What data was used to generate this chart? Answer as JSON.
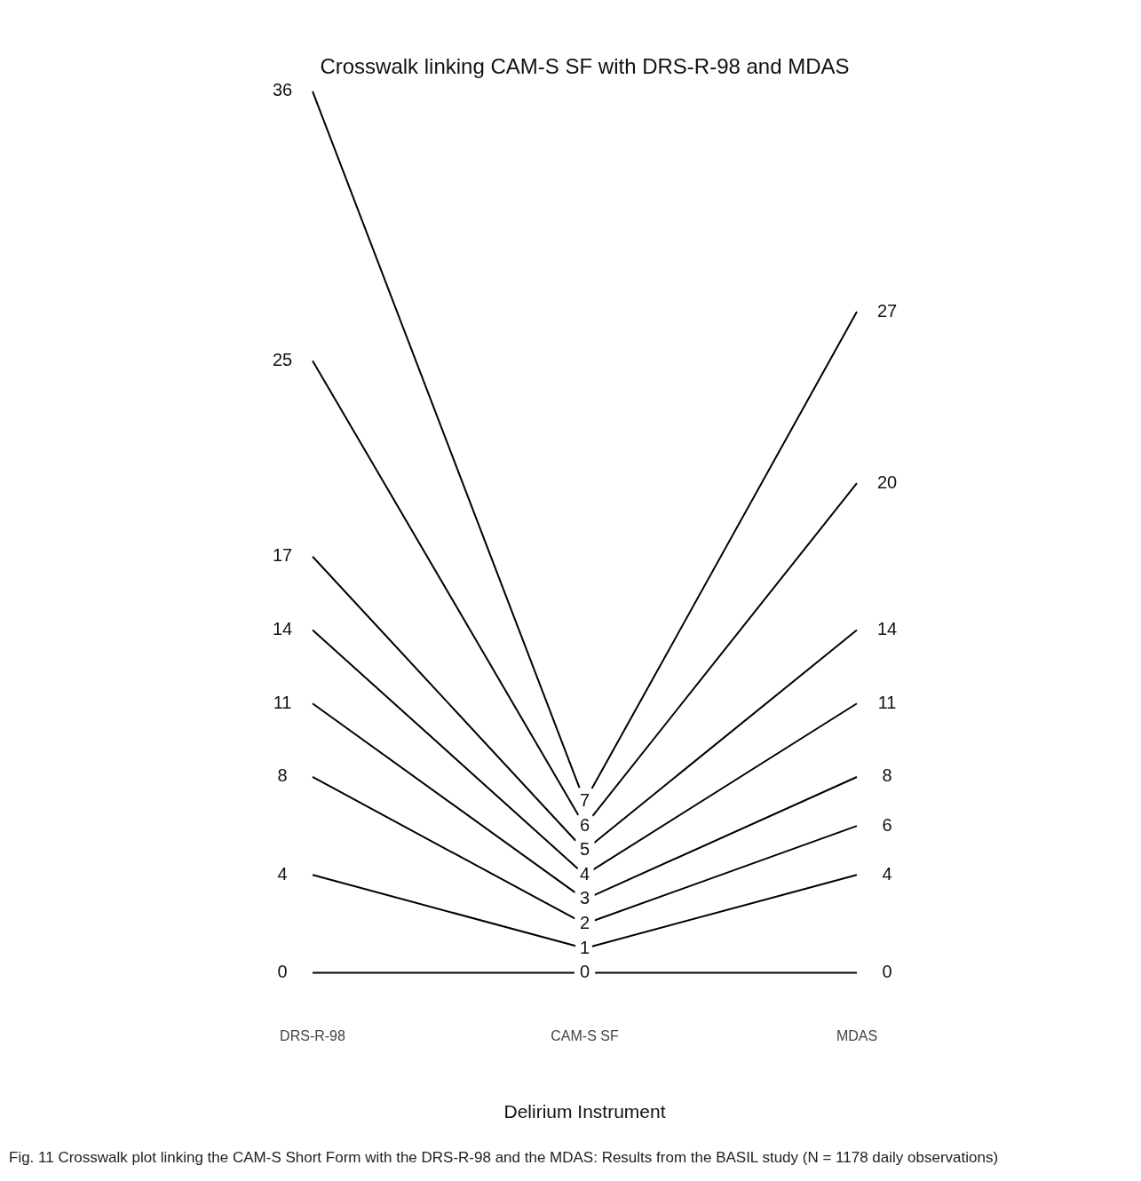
{
  "chart_data": {
    "type": "line",
    "title": "Crosswalk linking CAM-S SF with DRS-R-98 and MDAS",
    "xlabel": "Delirium Instrument",
    "categories": [
      "DRS-R-98",
      "CAM-S SF",
      "MDAS"
    ],
    "series": [
      {
        "color": "#000000",
        "values": [
          0,
          0,
          0
        ],
        "value_labels": [
          "0",
          "0",
          "0"
        ]
      },
      {
        "color": "#000000",
        "values": [
          4,
          1,
          null
        ],
        "value_labels": [
          "4",
          "1",
          null
        ]
      },
      {
        "color": "#000000",
        "values": [
          8,
          2,
          null
        ],
        "value_labels": [
          "8",
          "2",
          null
        ]
      },
      {
        "color": "#000000",
        "values": [
          11,
          3,
          null
        ],
        "value_labels": [
          "11",
          "3",
          null
        ]
      },
      {
        "color": "#000000",
        "values": [
          14,
          4,
          null
        ],
        "value_labels": [
          "14",
          "4",
          null
        ]
      },
      {
        "color": "#000000",
        "values": [
          17,
          5,
          null
        ],
        "value_labels": [
          "17",
          "5",
          null
        ]
      },
      {
        "color": "#000000",
        "values": [
          25,
          6,
          null
        ],
        "value_labels": [
          "25",
          "6",
          null
        ]
      },
      {
        "color": "#000000",
        "values": [
          36,
          7,
          null
        ],
        "value_labels": [
          "36",
          "7",
          null
        ]
      },
      {
        "color": "#000000",
        "values": [
          null,
          1,
          4
        ],
        "value_labels": [
          null,
          null,
          "4"
        ]
      },
      {
        "color": "#000000",
        "values": [
          null,
          2,
          6
        ],
        "value_labels": [
          null,
          null,
          "6"
        ]
      },
      {
        "color": "#000000",
        "values": [
          null,
          3,
          8
        ],
        "value_labels": [
          null,
          null,
          "8"
        ]
      },
      {
        "color": "#000000",
        "values": [
          null,
          4,
          11
        ],
        "value_labels": [
          null,
          null,
          "11"
        ]
      },
      {
        "color": "#000000",
        "values": [
          null,
          5,
          14
        ],
        "value_labels": [
          null,
          null,
          "14"
        ]
      },
      {
        "color": "#000000",
        "values": [
          null,
          6,
          20
        ],
        "value_labels": [
          null,
          null,
          "20"
        ]
      },
      {
        "color": "#000000",
        "values": [
          null,
          7,
          27
        ],
        "value_labels": [
          null,
          null,
          "27"
        ]
      }
    ],
    "grid": false,
    "legend": false,
    "marker": "none",
    "line_style": "solid",
    "annotations": [
      "Fig. 11 Crosswalk plot linking the CAM-S Short Form with the DRS-R-98 and the MDAS: Results from the BASIL study (N = 1178 daily observations)"
    ]
  }
}
